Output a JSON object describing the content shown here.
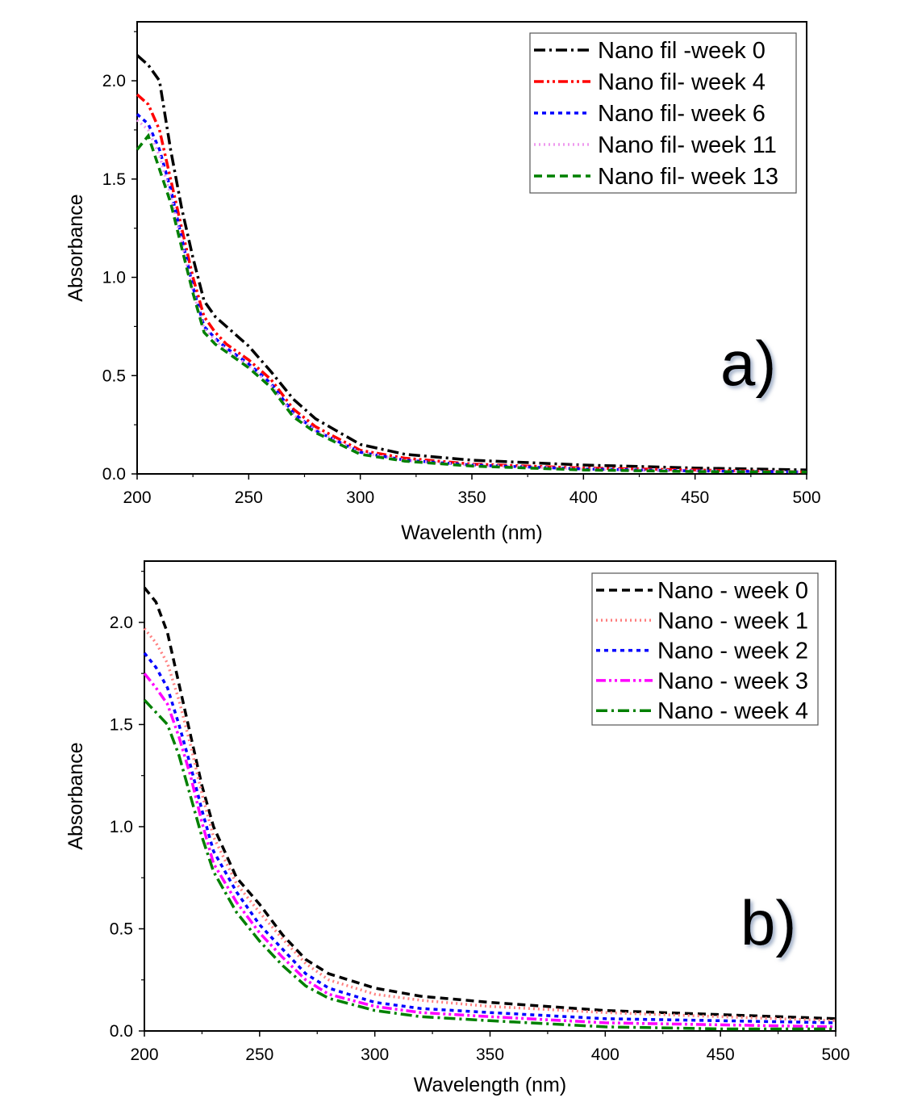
{
  "chart_data": [
    {
      "type": "line",
      "annotation": "a)",
      "xlabel": "Wavelenth (nm)",
      "ylabel": "Absorbance",
      "xlim": [
        200,
        500
      ],
      "ylim": [
        0,
        2.3
      ],
      "xticks": [
        200,
        250,
        300,
        350,
        400,
        450,
        500
      ],
      "yticks": [
        0.0,
        0.5,
        1.0,
        1.5,
        2.0
      ],
      "ytick_labels": [
        "0.0",
        "0.5",
        "1.0",
        "1.5",
        "2.0"
      ],
      "grid": false,
      "legend_position": "top-right",
      "x": [
        200,
        205,
        210,
        215,
        220,
        225,
        230,
        235,
        240,
        250,
        260,
        270,
        280,
        300,
        320,
        350,
        400,
        450,
        500
      ],
      "series": [
        {
          "name": "Nano fil -week 0",
          "color": "#000000",
          "dash": "dashdot",
          "values": [
            2.13,
            2.08,
            2.0,
            1.65,
            1.35,
            1.1,
            0.88,
            0.8,
            0.75,
            0.65,
            0.52,
            0.38,
            0.28,
            0.15,
            0.1,
            0.07,
            0.045,
            0.03,
            0.02
          ]
        },
        {
          "name": "Nano fil- week 4",
          "color": "#ff0000",
          "dash": "dashdotdot",
          "values": [
            1.93,
            1.88,
            1.75,
            1.5,
            1.25,
            1.0,
            0.8,
            0.72,
            0.66,
            0.58,
            0.48,
            0.33,
            0.24,
            0.12,
            0.08,
            0.05,
            0.03,
            0.02,
            0.01
          ]
        },
        {
          "name": "Nano fil- week 6",
          "color": "#0000ff",
          "dash": "dot",
          "values": [
            1.83,
            1.78,
            1.65,
            1.45,
            1.2,
            0.95,
            0.75,
            0.69,
            0.64,
            0.56,
            0.46,
            0.31,
            0.22,
            0.11,
            0.07,
            0.045,
            0.025,
            0.015,
            0.01
          ]
        },
        {
          "name": "Nano fil- week 11",
          "color": "#ee99ee",
          "dash": "shortdot",
          "values": [
            1.8,
            1.75,
            1.62,
            1.42,
            1.18,
            0.93,
            0.74,
            0.68,
            0.63,
            0.55,
            0.45,
            0.3,
            0.22,
            0.11,
            0.07,
            0.045,
            0.025,
            0.015,
            0.01
          ]
        },
        {
          "name": "Nano fil- week 13",
          "color": "#008000",
          "dash": "dash",
          "values": [
            1.65,
            1.72,
            1.55,
            1.38,
            1.15,
            0.92,
            0.72,
            0.66,
            0.62,
            0.54,
            0.44,
            0.29,
            0.21,
            0.1,
            0.065,
            0.04,
            0.02,
            0.012,
            0.01
          ]
        }
      ]
    },
    {
      "type": "line",
      "annotation": "b)",
      "xlabel": "Wavelength (nm)",
      "ylabel": "Absorbance",
      "xlim": [
        200,
        500
      ],
      "ylim": [
        0,
        2.3
      ],
      "xticks": [
        200,
        250,
        300,
        350,
        400,
        450,
        500
      ],
      "yticks": [
        0.0,
        0.5,
        1.0,
        1.5,
        2.0
      ],
      "ytick_labels": [
        "0.0",
        "0.5",
        "1.0",
        "1.5",
        "2.0"
      ],
      "grid": false,
      "legend_position": "top-right",
      "x": [
        200,
        205,
        210,
        215,
        220,
        225,
        230,
        240,
        250,
        260,
        270,
        280,
        300,
        320,
        350,
        400,
        450,
        500
      ],
      "series": [
        {
          "name": "Nano - week 0",
          "color": "#000000",
          "dash": "dash",
          "values": [
            2.17,
            2.1,
            1.95,
            1.7,
            1.45,
            1.2,
            1.0,
            0.75,
            0.62,
            0.47,
            0.35,
            0.28,
            0.21,
            0.17,
            0.14,
            0.1,
            0.08,
            0.06
          ]
        },
        {
          "name": "Nano - week 1",
          "color": "#ff8080",
          "dash": "shortdot",
          "values": [
            1.97,
            1.9,
            1.8,
            1.62,
            1.4,
            1.16,
            0.95,
            0.72,
            0.58,
            0.45,
            0.33,
            0.25,
            0.18,
            0.15,
            0.12,
            0.09,
            0.07,
            0.05
          ]
        },
        {
          "name": "Nano - week 2",
          "color": "#0000ff",
          "dash": "dot",
          "values": [
            1.85,
            1.78,
            1.68,
            1.5,
            1.3,
            1.08,
            0.88,
            0.68,
            0.52,
            0.4,
            0.28,
            0.21,
            0.14,
            0.11,
            0.09,
            0.06,
            0.05,
            0.04
          ]
        },
        {
          "name": "Nano - week 3",
          "color": "#ff00ff",
          "dash": "dashdotdot",
          "values": [
            1.75,
            1.68,
            1.6,
            1.44,
            1.25,
            1.02,
            0.82,
            0.63,
            0.48,
            0.36,
            0.25,
            0.18,
            0.12,
            0.09,
            0.07,
            0.04,
            0.03,
            0.02
          ]
        },
        {
          "name": "Nano - week 4",
          "color": "#008000",
          "dash": "dashdot",
          "values": [
            1.62,
            1.56,
            1.5,
            1.35,
            1.15,
            0.95,
            0.78,
            0.58,
            0.44,
            0.32,
            0.22,
            0.16,
            0.1,
            0.07,
            0.05,
            0.02,
            0.01,
            0.01
          ]
        }
      ]
    }
  ]
}
